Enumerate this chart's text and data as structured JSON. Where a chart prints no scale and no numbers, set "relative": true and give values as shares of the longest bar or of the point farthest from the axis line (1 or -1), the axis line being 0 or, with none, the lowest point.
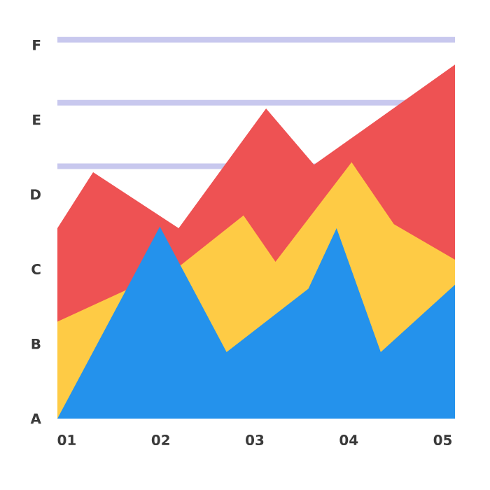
{
  "chart_data": {
    "type": "area",
    "relative": true,
    "xlim": [
      0.9,
      5.13
    ],
    "xticks": [
      {
        "value": 1,
        "label": "01"
      },
      {
        "value": 2,
        "label": "02"
      },
      {
        "value": 3,
        "label": "03"
      },
      {
        "value": 4,
        "label": "04"
      },
      {
        "value": 5,
        "label": "05"
      }
    ],
    "annotations": [
      "A",
      "B",
      "C",
      "D",
      "E",
      "F"
    ],
    "series": [
      {
        "color": "#ee5253",
        "x": [
          0.9,
          1.28,
          2.19,
          3.12,
          3.63,
          5.13
        ],
        "values": [
          0.538,
          0.696,
          0.538,
          0.876,
          0.717,
          1
        ]
      },
      {
        "color": "#fecb45",
        "x": [
          0.9,
          2.22,
          2.88,
          3.22,
          4.03,
          4.48,
          5.13
        ],
        "values": [
          0.274,
          0.435,
          0.574,
          0.443,
          0.724,
          0.549,
          0.449
        ]
      },
      {
        "color": "#2492ec",
        "x": [
          0.9,
          1.99,
          2.7,
          3.57,
          3.87,
          4.34,
          5.13
        ],
        "values": [
          0,
          0.542,
          0.188,
          0.367,
          0.538,
          0.188,
          0.378
        ]
      }
    ],
    "ref_lines": [
      {
        "axis": "y",
        "value": 1.07,
        "color": "#c8c8ee"
      },
      {
        "axis": "y",
        "value": 0.892,
        "color": "#c8c8ee"
      },
      {
        "axis": "y",
        "value": 0.713,
        "color": "#c8c8ee"
      }
    ],
    "grid": false
  }
}
